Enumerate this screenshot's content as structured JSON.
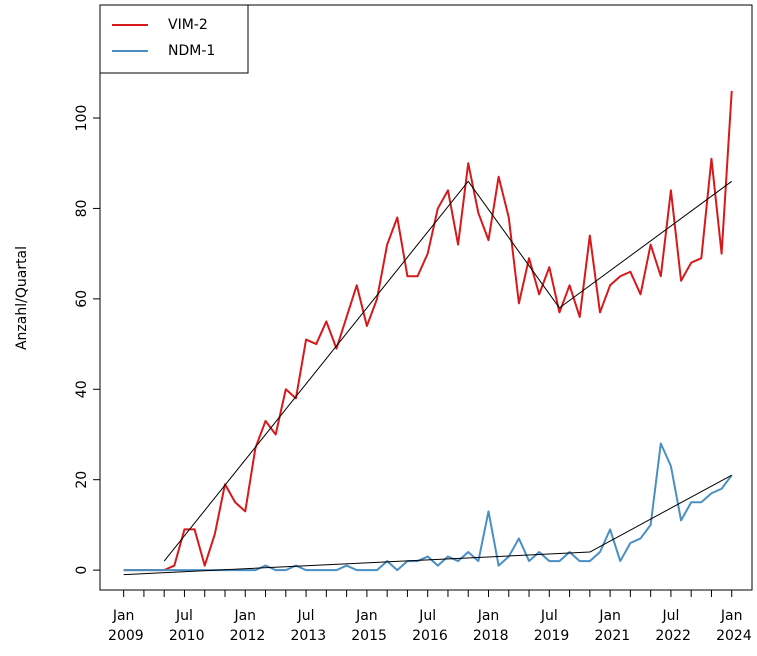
{
  "chart_data": {
    "type": "line",
    "y_label": "Anzahl/Quartal",
    "x": [
      "2009-01",
      "2009-04",
      "2009-07",
      "2009-10",
      "2010-01",
      "2010-04",
      "2010-07",
      "2010-10",
      "2011-01",
      "2011-04",
      "2011-07",
      "2011-10",
      "2012-01",
      "2012-04",
      "2012-07",
      "2012-10",
      "2013-01",
      "2013-04",
      "2013-07",
      "2013-10",
      "2014-01",
      "2014-04",
      "2014-07",
      "2014-10",
      "2015-01",
      "2015-04",
      "2015-07",
      "2015-10",
      "2016-01",
      "2016-04",
      "2016-07",
      "2016-10",
      "2017-01",
      "2017-04",
      "2017-07",
      "2017-10",
      "2018-01",
      "2018-04",
      "2018-07",
      "2018-10",
      "2019-01",
      "2019-04",
      "2019-07",
      "2019-10",
      "2020-01",
      "2020-04",
      "2020-07",
      "2020-10",
      "2021-01",
      "2021-04",
      "2021-07",
      "2021-10",
      "2022-01",
      "2022-04",
      "2022-07",
      "2022-10",
      "2023-01",
      "2023-04",
      "2023-07",
      "2023-10",
      "2024-01"
    ],
    "series": [
      {
        "name": "VIM-2",
        "color": "#d7191c",
        "values": [
          0,
          0,
          0,
          0,
          0,
          1,
          9,
          9,
          1,
          8,
          19,
          15,
          13,
          27,
          33,
          30,
          40,
          38,
          51,
          50,
          55,
          49,
          56,
          63,
          54,
          60,
          72,
          78,
          65,
          65,
          70,
          80,
          84,
          72,
          90,
          79,
          73,
          87,
          78,
          59,
          69,
          61,
          67,
          57,
          63,
          56,
          74,
          57,
          63,
          65,
          66,
          61,
          72,
          65,
          84,
          64,
          68,
          69,
          91,
          70,
          106
        ]
      },
      {
        "name": "NDM-1",
        "color": "#4a8fc4",
        "values": [
          0,
          0,
          0,
          0,
          0,
          0,
          0,
          0,
          0,
          0,
          0,
          0,
          0,
          0,
          1,
          0,
          0,
          1,
          0,
          0,
          0,
          0,
          1,
          0,
          0,
          0,
          2,
          0,
          2,
          2,
          3,
          1,
          3,
          2,
          4,
          2,
          13,
          1,
          3,
          7,
          2,
          4,
          2,
          2,
          4,
          2,
          2,
          4,
          9,
          2,
          6,
          7,
          10,
          28,
          23,
          11,
          15,
          15,
          17,
          18,
          21
        ]
      }
    ],
    "trend_lines": [
      {
        "color": "#000000",
        "x": [
          "2010-01",
          "2017-07",
          "2019-10",
          "2024-01"
        ],
        "values": [
          2,
          86,
          58,
          86
        ]
      },
      {
        "color": "#000000",
        "x": [
          "2009-01",
          "2020-07",
          "2024-01"
        ],
        "values": [
          -1,
          4,
          21
        ]
      }
    ],
    "xlim": [
      "2008-06",
      "2024-07"
    ],
    "xticks": [
      {
        "value": "2009-01",
        "label": "Jan 2009"
      },
      {
        "value": "2009-07",
        "label": null
      },
      {
        "value": "2010-01",
        "label": null
      },
      {
        "value": "2010-07",
        "label": "Jul 2010"
      },
      {
        "value": "2011-01",
        "label": null
      },
      {
        "value": "2011-07",
        "label": null
      },
      {
        "value": "2012-01",
        "label": "Jan 2012"
      },
      {
        "value": "2012-07",
        "label": null
      },
      {
        "value": "2013-01",
        "label": null
      },
      {
        "value": "2013-07",
        "label": "Jul 2013"
      },
      {
        "value": "2014-01",
        "label": null
      },
      {
        "value": "2014-07",
        "label": null
      },
      {
        "value": "2015-01",
        "label": "Jan 2015"
      },
      {
        "value": "2015-07",
        "label": null
      },
      {
        "value": "2016-01",
        "label": null
      },
      {
        "value": "2016-07",
        "label": "Jul 2016"
      },
      {
        "value": "2017-01",
        "label": null
      },
      {
        "value": "2017-07",
        "label": null
      },
      {
        "value": "2018-01",
        "label": "Jan 2018"
      },
      {
        "value": "2018-07",
        "label": null
      },
      {
        "value": "2019-01",
        "label": null
      },
      {
        "value": "2019-07",
        "label": "Jul 2019"
      },
      {
        "value": "2020-01",
        "label": null
      },
      {
        "value": "2020-07",
        "label": null
      },
      {
        "value": "2021-01",
        "label": "Jan 2021"
      },
      {
        "value": "2021-07",
        "label": null
      },
      {
        "value": "2022-01",
        "label": null
      },
      {
        "value": "2022-07",
        "label": "Jul 2022"
      },
      {
        "value": "2023-01",
        "label": null
      },
      {
        "value": "2023-07",
        "label": null
      },
      {
        "value": "2024-01",
        "label": "Jan 2024"
      }
    ],
    "ylim": [
      -4.4,
      125
    ],
    "yticks": [
      0,
      20,
      40,
      60,
      80,
      100
    ],
    "legend": "top-left"
  }
}
